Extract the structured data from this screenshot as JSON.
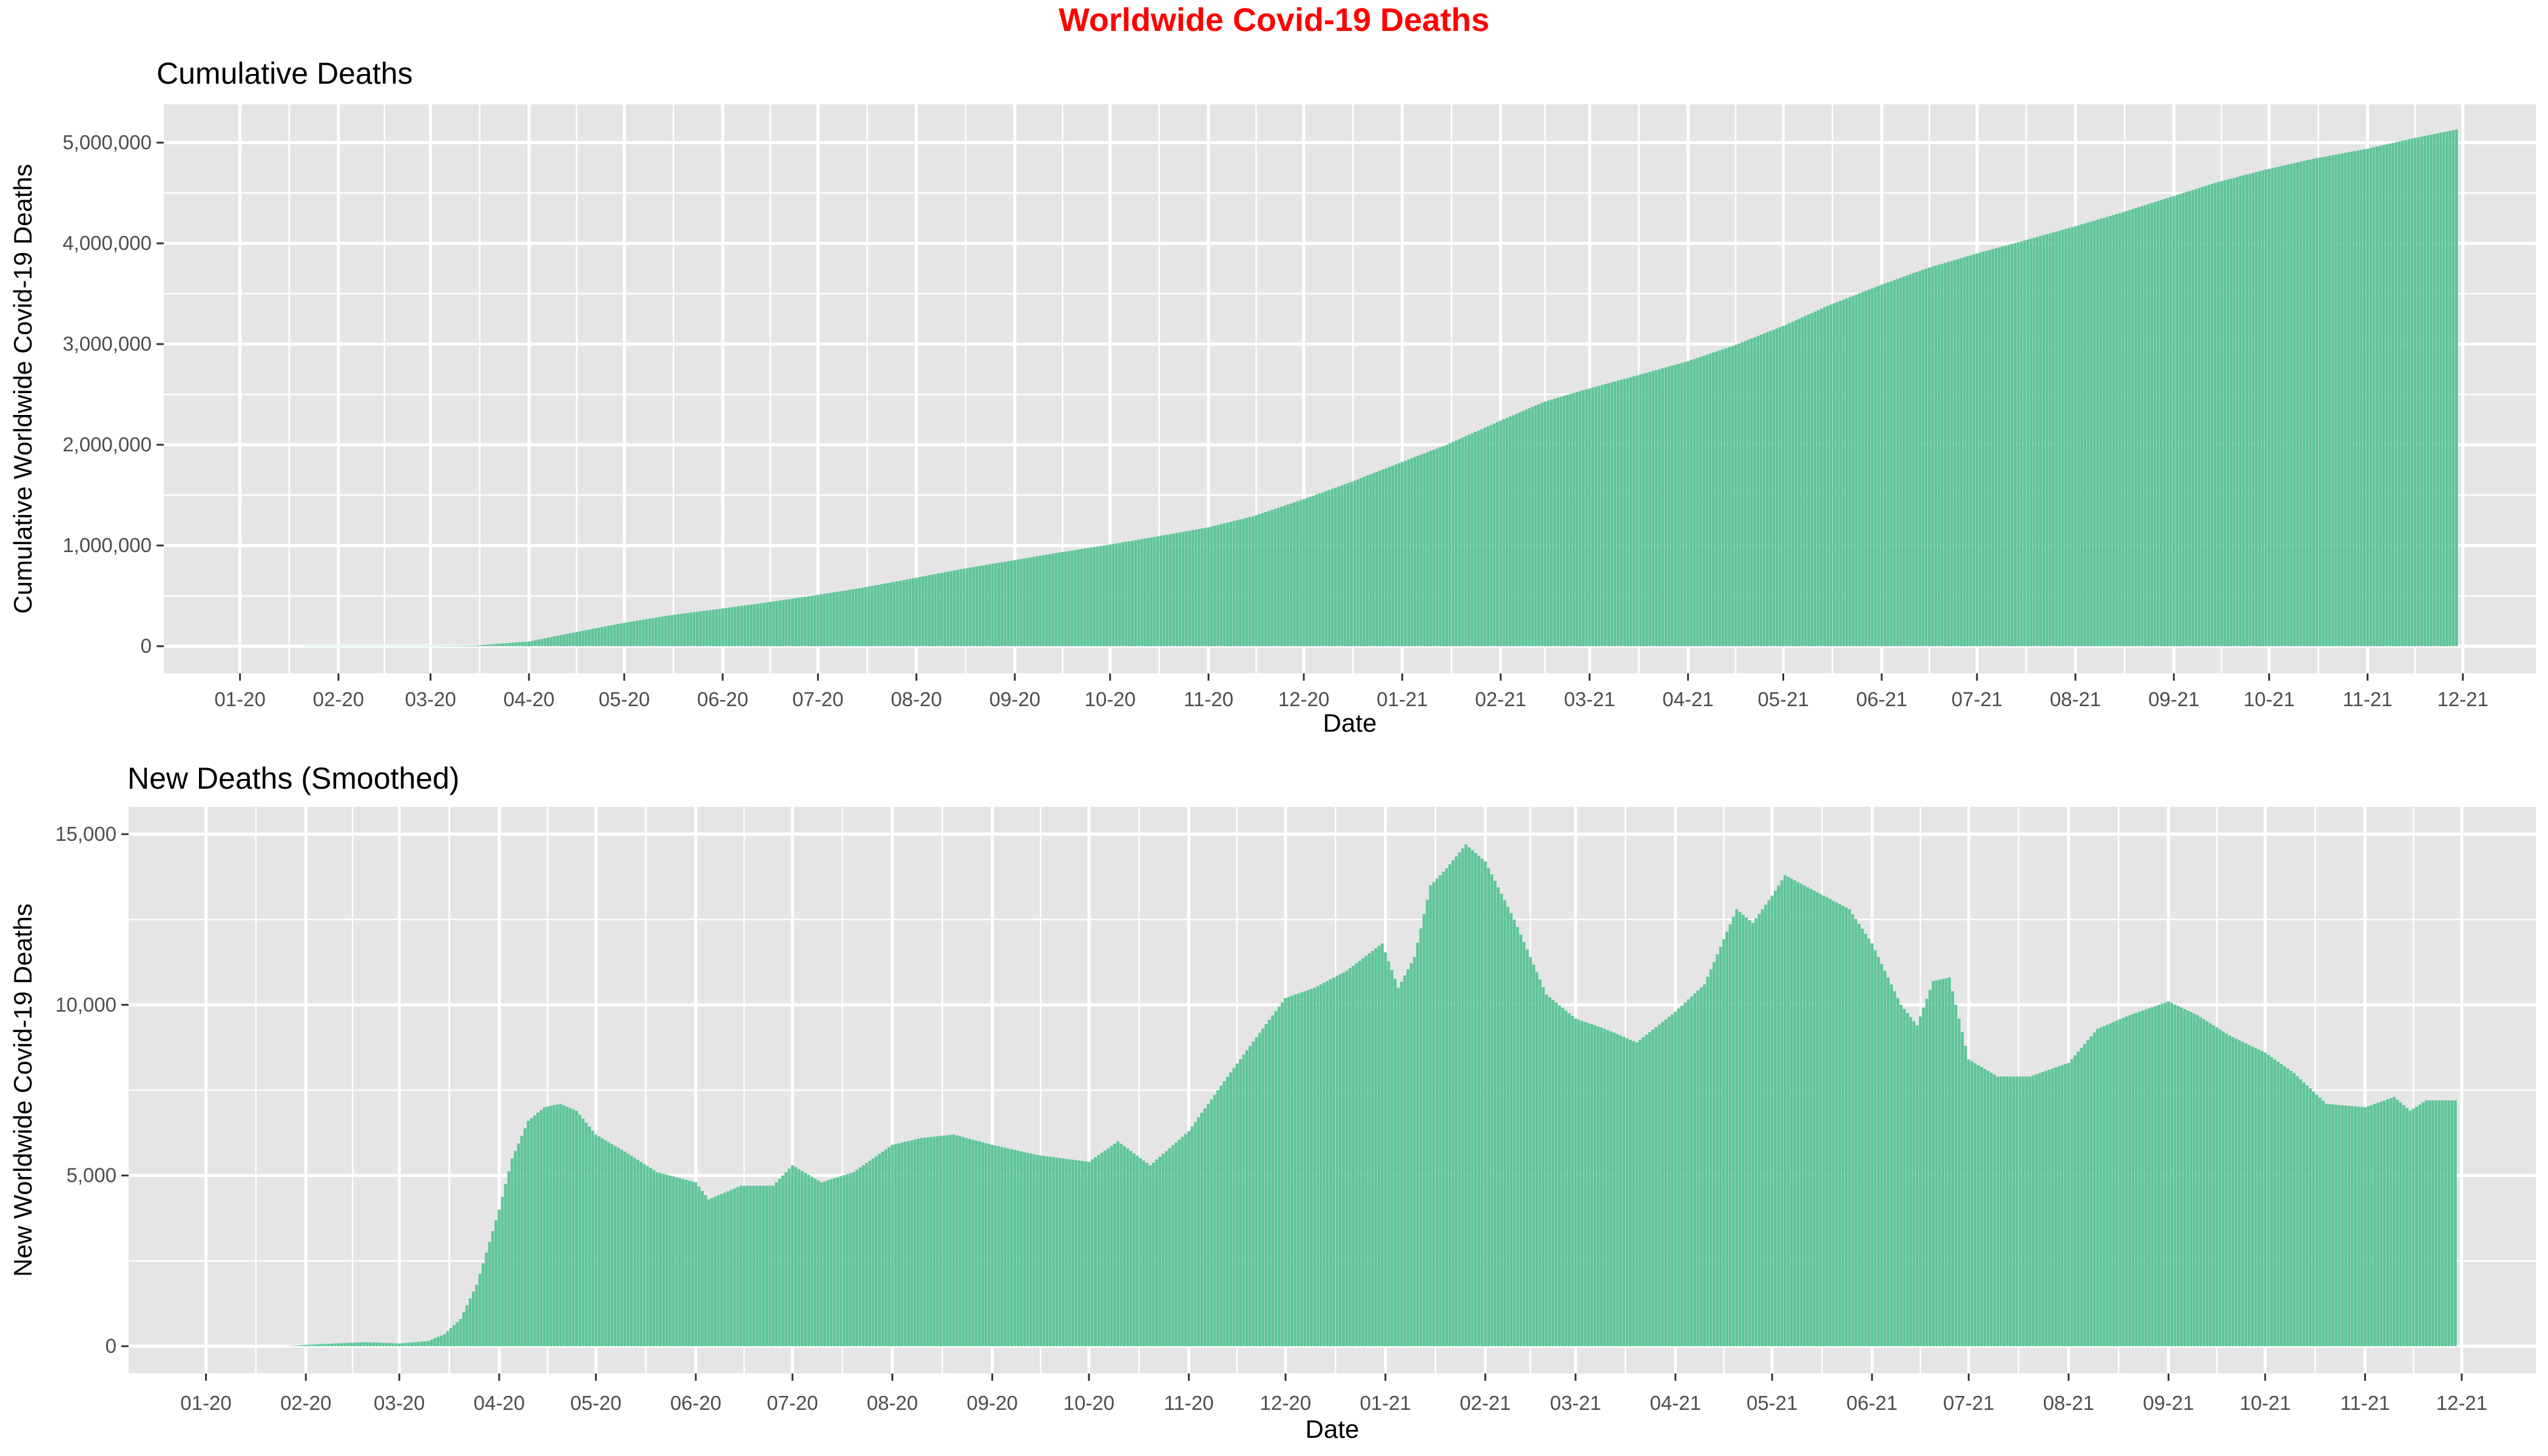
{
  "figure": {
    "title": "Worldwide Covid-19 Deaths",
    "title_color": "#ff0000",
    "panel_background": "#e5e5e5",
    "grid_color": "#ffffff",
    "bar_color": "#5ec598"
  },
  "chart_data": [
    {
      "type": "bar",
      "title": "Cumulative Deaths",
      "xlabel": "Date",
      "ylabel": "Cumulative Worldwide Covid-19 Deaths",
      "grid": true,
      "legend": "none",
      "xlim": [
        "2019-12-08",
        "2021-12-24"
      ],
      "ylim": [
        -270000,
        5380000
      ],
      "x_ticks": [
        "2020-01-01",
        "2020-02-01",
        "2020-03-01",
        "2020-04-01",
        "2020-05-01",
        "2020-06-01",
        "2020-07-01",
        "2020-08-01",
        "2020-09-01",
        "2020-10-01",
        "2020-11-01",
        "2020-12-01",
        "2021-01-01",
        "2021-02-01",
        "2021-03-01",
        "2021-04-01",
        "2021-05-01",
        "2021-06-01",
        "2021-07-01",
        "2021-08-01",
        "2021-09-01",
        "2021-10-01",
        "2021-11-01",
        "2021-12-01"
      ],
      "x_tick_labels": [
        "01-20",
        "02-20",
        "03-20",
        "04-20",
        "05-20",
        "06-20",
        "07-20",
        "08-20",
        "09-20",
        "10-20",
        "11-20",
        "12-20",
        "01-21",
        "02-21",
        "03-21",
        "04-21",
        "05-21",
        "06-21",
        "07-21",
        "08-21",
        "09-21",
        "10-21",
        "11-21",
        "12-21"
      ],
      "y_ticks": [
        0,
        1000000,
        2000000,
        3000000,
        4000000,
        5000000
      ],
      "y_tick_labels": [
        "0",
        "1,000,000",
        "2,000,000",
        "3,000,000",
        "4,000,000",
        "5,000,000"
      ],
      "series_points": [
        [
          "2020-01-22",
          0
        ],
        [
          "2020-02-15",
          1700
        ],
        [
          "2020-03-01",
          3000
        ],
        [
          "2020-03-15",
          6500
        ],
        [
          "2020-04-01",
          47000
        ],
        [
          "2020-04-15",
          135000
        ],
        [
          "2020-05-01",
          233000
        ],
        [
          "2020-05-15",
          305000
        ],
        [
          "2020-06-01",
          375000
        ],
        [
          "2020-06-15",
          435000
        ],
        [
          "2020-07-01",
          510000
        ],
        [
          "2020-07-15",
          580000
        ],
        [
          "2020-08-01",
          680000
        ],
        [
          "2020-08-15",
          765000
        ],
        [
          "2020-09-01",
          855000
        ],
        [
          "2020-09-15",
          930000
        ],
        [
          "2020-10-01",
          1010000
        ],
        [
          "2020-10-15",
          1085000
        ],
        [
          "2020-11-01",
          1180000
        ],
        [
          "2020-11-15",
          1290000
        ],
        [
          "2020-12-01",
          1460000
        ],
        [
          "2020-12-15",
          1620000
        ],
        [
          "2021-01-01",
          1830000
        ],
        [
          "2021-01-15",
          2000000
        ],
        [
          "2021-02-01",
          2240000
        ],
        [
          "2021-02-15",
          2430000
        ],
        [
          "2021-03-01",
          2560000
        ],
        [
          "2021-03-15",
          2680000
        ],
        [
          "2021-04-01",
          2830000
        ],
        [
          "2021-04-15",
          2980000
        ],
        [
          "2021-05-01",
          3180000
        ],
        [
          "2021-05-15",
          3380000
        ],
        [
          "2021-06-01",
          3590000
        ],
        [
          "2021-06-15",
          3750000
        ],
        [
          "2021-07-01",
          3900000
        ],
        [
          "2021-07-15",
          4020000
        ],
        [
          "2021-08-01",
          4170000
        ],
        [
          "2021-08-15",
          4300000
        ],
        [
          "2021-09-01",
          4470000
        ],
        [
          "2021-09-15",
          4610000
        ],
        [
          "2021-10-01",
          4740000
        ],
        [
          "2021-10-15",
          4840000
        ],
        [
          "2021-11-01",
          4940000
        ],
        [
          "2021-11-15",
          5040000
        ],
        [
          "2021-11-29",
          5130000
        ]
      ]
    },
    {
      "type": "bar",
      "title": "New Deaths (Smoothed)",
      "xlabel": "Date",
      "ylabel": "New Worldwide Covid-19 Deaths",
      "grid": true,
      "legend": "none",
      "xlim": [
        "2019-12-08",
        "2021-12-24"
      ],
      "ylim": [
        -800,
        15800
      ],
      "x_ticks": [
        "2020-01-01",
        "2020-02-01",
        "2020-03-01",
        "2020-04-01",
        "2020-05-01",
        "2020-06-01",
        "2020-07-01",
        "2020-08-01",
        "2020-09-01",
        "2020-10-01",
        "2020-11-01",
        "2020-12-01",
        "2021-01-01",
        "2021-02-01",
        "2021-03-01",
        "2021-04-01",
        "2021-05-01",
        "2021-06-01",
        "2021-07-01",
        "2021-08-01",
        "2021-09-01",
        "2021-10-01",
        "2021-11-01",
        "2021-12-01"
      ],
      "x_tick_labels": [
        "01-20",
        "02-20",
        "03-20",
        "04-20",
        "05-20",
        "06-20",
        "07-20",
        "08-20",
        "09-20",
        "10-20",
        "11-20",
        "12-20",
        "01-21",
        "02-21",
        "03-21",
        "04-21",
        "05-21",
        "06-21",
        "07-21",
        "08-21",
        "09-21",
        "10-21",
        "11-21",
        "12-21"
      ],
      "y_ticks": [
        0,
        5000,
        10000,
        15000
      ],
      "y_tick_labels": [
        "0",
        "5,000",
        "10,000",
        "15,000"
      ],
      "series_points": [
        [
          "2020-01-27",
          0
        ],
        [
          "2020-02-01",
          40
        ],
        [
          "2020-02-10",
          80
        ],
        [
          "2020-02-20",
          120
        ],
        [
          "2020-03-01",
          80
        ],
        [
          "2020-03-10",
          150
        ],
        [
          "2020-03-15",
          350
        ],
        [
          "2020-03-20",
          800
        ],
        [
          "2020-03-25",
          1800
        ],
        [
          "2020-04-01",
          4000
        ],
        [
          "2020-04-05",
          5500
        ],
        [
          "2020-04-10",
          6600
        ],
        [
          "2020-04-15",
          7000
        ],
        [
          "2020-04-20",
          7100
        ],
        [
          "2020-04-25",
          6900
        ],
        [
          "2020-05-01",
          6200
        ],
        [
          "2020-05-10",
          5700
        ],
        [
          "2020-05-20",
          5100
        ],
        [
          "2020-06-01",
          4800
        ],
        [
          "2020-06-05",
          4300
        ],
        [
          "2020-06-10",
          4500
        ],
        [
          "2020-06-15",
          4700
        ],
        [
          "2020-06-25",
          4700
        ],
        [
          "2020-07-01",
          5300
        ],
        [
          "2020-07-10",
          4800
        ],
        [
          "2020-07-20",
          5100
        ],
        [
          "2020-08-01",
          5900
        ],
        [
          "2020-08-10",
          6100
        ],
        [
          "2020-08-20",
          6200
        ],
        [
          "2020-09-01",
          5900
        ],
        [
          "2020-09-15",
          5600
        ],
        [
          "2020-10-01",
          5400
        ],
        [
          "2020-10-10",
          6000
        ],
        [
          "2020-10-20",
          5300
        ],
        [
          "2020-11-01",
          6300
        ],
        [
          "2020-11-10",
          7500
        ],
        [
          "2020-11-20",
          8800
        ],
        [
          "2020-12-01",
          10200
        ],
        [
          "2020-12-10",
          10500
        ],
        [
          "2020-12-20",
          11000
        ],
        [
          "2020-12-31",
          11800
        ],
        [
          "2021-01-05",
          10500
        ],
        [
          "2021-01-10",
          11400
        ],
        [
          "2021-01-15",
          13500
        ],
        [
          "2021-01-20",
          14000
        ],
        [
          "2021-01-26",
          14700
        ],
        [
          "2021-02-01",
          14200
        ],
        [
          "2021-02-10",
          12500
        ],
        [
          "2021-02-20",
          10300
        ],
        [
          "2021-03-01",
          9600
        ],
        [
          "2021-03-10",
          9300
        ],
        [
          "2021-03-20",
          8900
        ],
        [
          "2021-04-01",
          9800
        ],
        [
          "2021-04-10",
          10600
        ],
        [
          "2021-04-20",
          12800
        ],
        [
          "2021-04-25",
          12400
        ],
        [
          "2021-05-01",
          13200
        ],
        [
          "2021-05-05",
          13800
        ],
        [
          "2021-05-15",
          13300
        ],
        [
          "2021-05-25",
          12800
        ],
        [
          "2021-06-01",
          11800
        ],
        [
          "2021-06-10",
          10000
        ],
        [
          "2021-06-15",
          9400
        ],
        [
          "2021-06-20",
          10700
        ],
        [
          "2021-06-25",
          10800
        ],
        [
          "2021-07-01",
          8400
        ],
        [
          "2021-07-10",
          7900
        ],
        [
          "2021-07-20",
          7900
        ],
        [
          "2021-08-01",
          8300
        ],
        [
          "2021-08-10",
          9300
        ],
        [
          "2021-08-20",
          9700
        ],
        [
          "2021-09-01",
          10100
        ],
        [
          "2021-09-10",
          9700
        ],
        [
          "2021-09-20",
          9100
        ],
        [
          "2021-10-01",
          8600
        ],
        [
          "2021-10-10",
          8000
        ],
        [
          "2021-10-20",
          7100
        ],
        [
          "2021-11-01",
          7000
        ],
        [
          "2021-11-10",
          7300
        ],
        [
          "2021-11-15",
          6900
        ],
        [
          "2021-11-20",
          7200
        ],
        [
          "2021-11-29",
          7200
        ]
      ]
    }
  ]
}
